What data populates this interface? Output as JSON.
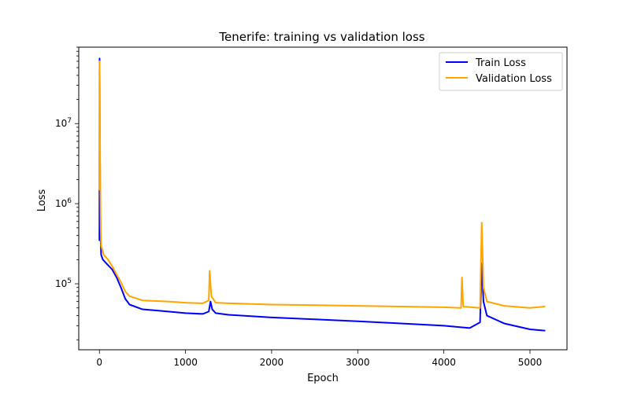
{
  "chart_data": {
    "type": "line",
    "title": "Tenerife: training vs validation loss",
    "xlabel": "Epoch",
    "ylabel": "Loss",
    "xscale": "linear",
    "yscale": "log",
    "xlim": [
      -240,
      5430
    ],
    "ylim": [
      15000,
      90000000
    ],
    "xticks": [
      0,
      1000,
      2000,
      3000,
      4000,
      5000
    ],
    "xtick_labels": [
      "0",
      "1000",
      "2000",
      "3000",
      "4000",
      "5000"
    ],
    "yticks": [
      100000,
      1000000,
      10000000
    ],
    "ytick_labels": [
      "10^5",
      "10^6",
      "10^7"
    ],
    "grid": false,
    "legend": {
      "position": "upper right",
      "entries": [
        "Train Loss",
        "Validation Loss"
      ]
    },
    "series": [
      {
        "name": "Train Loss",
        "color": "#0000ff",
        "points": [
          [
            0,
            350000
          ],
          [
            2,
            65000000
          ],
          [
            5,
            8000000
          ],
          [
            10,
            1000000
          ],
          [
            15,
            350000
          ],
          [
            20,
            230000
          ],
          [
            40,
            200000
          ],
          [
            80,
            180000
          ],
          [
            150,
            150000
          ],
          [
            200,
            120000
          ],
          [
            250,
            90000
          ],
          [
            300,
            65000
          ],
          [
            350,
            55000
          ],
          [
            500,
            48000
          ],
          [
            700,
            46000
          ],
          [
            1000,
            43000
          ],
          [
            1200,
            42000
          ],
          [
            1270,
            45000
          ],
          [
            1290,
            60000
          ],
          [
            1310,
            48000
          ],
          [
            1350,
            43000
          ],
          [
            1500,
            41000
          ],
          [
            2000,
            38000
          ],
          [
            2500,
            36000
          ],
          [
            3000,
            34000
          ],
          [
            3500,
            32000
          ],
          [
            4000,
            30000
          ],
          [
            4300,
            28000
          ],
          [
            4420,
            33000
          ],
          [
            4440,
            180000
          ],
          [
            4460,
            60000
          ],
          [
            4500,
            40000
          ],
          [
            4700,
            32000
          ],
          [
            5000,
            27000
          ],
          [
            5170,
            26000
          ]
        ]
      },
      {
        "name": "Validation Loss",
        "color": "#ffa500",
        "points": [
          [
            0,
            1500000
          ],
          [
            2,
            60000000
          ],
          [
            5,
            13000000
          ],
          [
            10,
            2000000
          ],
          [
            15,
            500000
          ],
          [
            20,
            300000
          ],
          [
            50,
            230000
          ],
          [
            100,
            200000
          ],
          [
            150,
            165000
          ],
          [
            200,
            130000
          ],
          [
            250,
            105000
          ],
          [
            300,
            80000
          ],
          [
            350,
            70000
          ],
          [
            500,
            62000
          ],
          [
            800,
            60000
          ],
          [
            1000,
            58000
          ],
          [
            1200,
            57000
          ],
          [
            1270,
            62000
          ],
          [
            1280,
            145000
          ],
          [
            1300,
            70000
          ],
          [
            1350,
            58000
          ],
          [
            1500,
            57000
          ],
          [
            2000,
            55000
          ],
          [
            2500,
            54000
          ],
          [
            3000,
            53000
          ],
          [
            3500,
            52000
          ],
          [
            4000,
            51000
          ],
          [
            4200,
            50000
          ],
          [
            4210,
            120000
          ],
          [
            4225,
            52000
          ],
          [
            4420,
            50000
          ],
          [
            4440,
            580000
          ],
          [
            4460,
            90000
          ],
          [
            4500,
            60000
          ],
          [
            4700,
            53000
          ],
          [
            5000,
            50000
          ],
          [
            5170,
            52000
          ]
        ]
      }
    ]
  }
}
